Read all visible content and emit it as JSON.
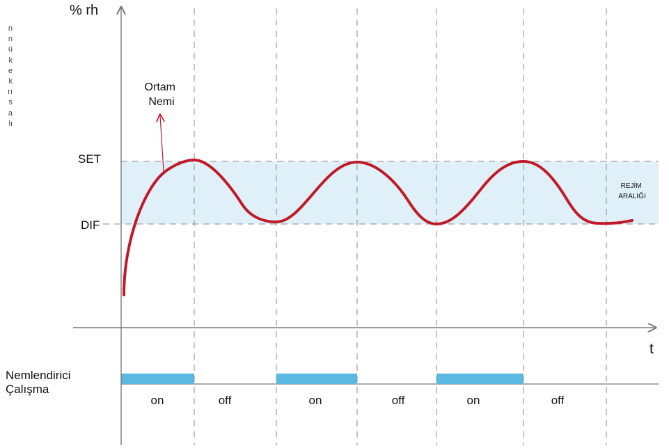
{
  "margin_letters": [
    "n",
    "n",
    "ü",
    "k",
    "e",
    "k",
    "rı",
    "s",
    "a",
    "lı"
  ],
  "y_axis_label": "% rh",
  "x_axis_label": "t",
  "set_label": "SET",
  "dif_label": "DIF",
  "curve_label": "Ortam Nemi",
  "curve_label_lines": [
    "Ortam",
    "Nemi"
  ],
  "band_label_lines": [
    "REJİM",
    "ARALIĞI"
  ],
  "operation_label_lines": [
    "Nemlendirici",
    "Çalışma"
  ],
  "states": [
    "on",
    "off",
    "on",
    "off",
    "on",
    "off"
  ],
  "colors": {
    "curve": "#c01a28",
    "band": "#dff0f9",
    "bar": "#5bb8e1",
    "guide": "#8a8a8a",
    "axis": "#7a7a7a",
    "text": "#111111"
  }
}
